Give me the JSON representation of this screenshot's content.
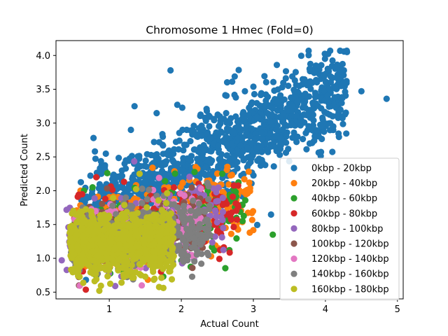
{
  "chart_data": {
    "type": "scatter",
    "title": "Chromosome 1 Hmec (Fold=0)",
    "xlabel": "Actual Count",
    "ylabel": "Predicted Count",
    "xlim": [
      0.26,
      5.08
    ],
    "ylim": [
      0.4,
      4.22
    ],
    "xticks": [
      1,
      2,
      3,
      4,
      5
    ],
    "yticks": [
      0.5,
      1.0,
      1.5,
      2.0,
      2.5,
      3.0,
      3.5,
      4.0
    ],
    "legend_position": "lower-right",
    "series": [
      {
        "name": "0kbp - 20kbp",
        "color": "#1f77b4",
        "cloud": {
          "x": [
            0.6,
            4.3
          ],
          "y_center_at_x_min": 1.55,
          "y_center_at_x_max": 3.55,
          "spread": 0.33,
          "count": 1300
        },
        "points": [
          [
            4.85,
            3.36
          ],
          [
            4.5,
            3.47
          ],
          [
            1.85,
            3.78
          ],
          [
            1.3,
            2.9
          ],
          [
            0.8,
            2.58
          ],
          [
            1.35,
            3.25
          ],
          [
            4.3,
            4.05
          ]
        ]
      },
      {
        "name": "20kbp - 40kbp",
        "color": "#ff7f0e",
        "cloud": {
          "x": [
            0.5,
            3.0
          ],
          "y_center": 1.3,
          "y_slope": 0.25,
          "spread": 0.28,
          "count": 260
        },
        "points": [
          [
            2.2,
            2.35
          ],
          [
            1.6,
            2.34
          ],
          [
            0.6,
            2.0
          ]
        ]
      },
      {
        "name": "40kbp - 60kbp",
        "color": "#2ca02c",
        "cloud": {
          "x": [
            0.5,
            2.9
          ],
          "y_center": 1.3,
          "y_slope": 0.2,
          "spread": 0.27,
          "count": 200
        },
        "points": [
          [
            3.27,
            1.35
          ],
          [
            2.85,
            1.55
          ],
          [
            0.65,
            2.0
          ],
          [
            1.75,
            0.73
          ]
        ]
      },
      {
        "name": "60kbp - 80kbp",
        "color": "#d62728",
        "cloud": {
          "x": [
            0.5,
            2.8
          ],
          "y_center": 1.28,
          "y_slope": 0.2,
          "spread": 0.27,
          "count": 200
        },
        "points": [
          [
            0.82,
            2.2
          ]
        ]
      },
      {
        "name": "80kbp - 100kbp",
        "color": "#9467bd",
        "cloud": {
          "x": [
            0.4,
            2.6
          ],
          "y_center": 1.25,
          "y_slope": 0.18,
          "spread": 0.27,
          "count": 220
        },
        "points": [
          [
            0.34,
            0.97
          ]
        ]
      },
      {
        "name": "100kbp - 120kbp",
        "color": "#8c564b",
        "cloud": {
          "x": [
            0.5,
            2.4
          ],
          "y_center": 1.25,
          "y_slope": 0.15,
          "spread": 0.26,
          "count": 180
        },
        "points": [
          [
            0.58,
            0.6
          ]
        ]
      },
      {
        "name": "120kbp - 140kbp",
        "color": "#e377c2",
        "cloud": {
          "x": [
            0.5,
            2.3
          ],
          "y_center": 1.27,
          "y_slope": 0.15,
          "spread": 0.26,
          "count": 180
        },
        "points": [
          [
            1.45,
            0.6
          ]
        ]
      },
      {
        "name": "140kbp - 160kbp",
        "color": "#7f7f7f",
        "cloud": {
          "x": [
            0.45,
            2.4
          ],
          "y_center": 1.22,
          "y_slope": 0.12,
          "spread": 0.24,
          "count": 420
        },
        "points": []
      },
      {
        "name": "160kbp - 180kbp",
        "color": "#bcbd22",
        "cloud": {
          "x": [
            0.45,
            1.9
          ],
          "y_center": 1.18,
          "y_slope": 0.05,
          "spread": 0.22,
          "count": 900
        },
        "points": [
          [
            1.42,
            2.25
          ],
          [
            1.17,
            0.64
          ]
        ]
      }
    ]
  }
}
